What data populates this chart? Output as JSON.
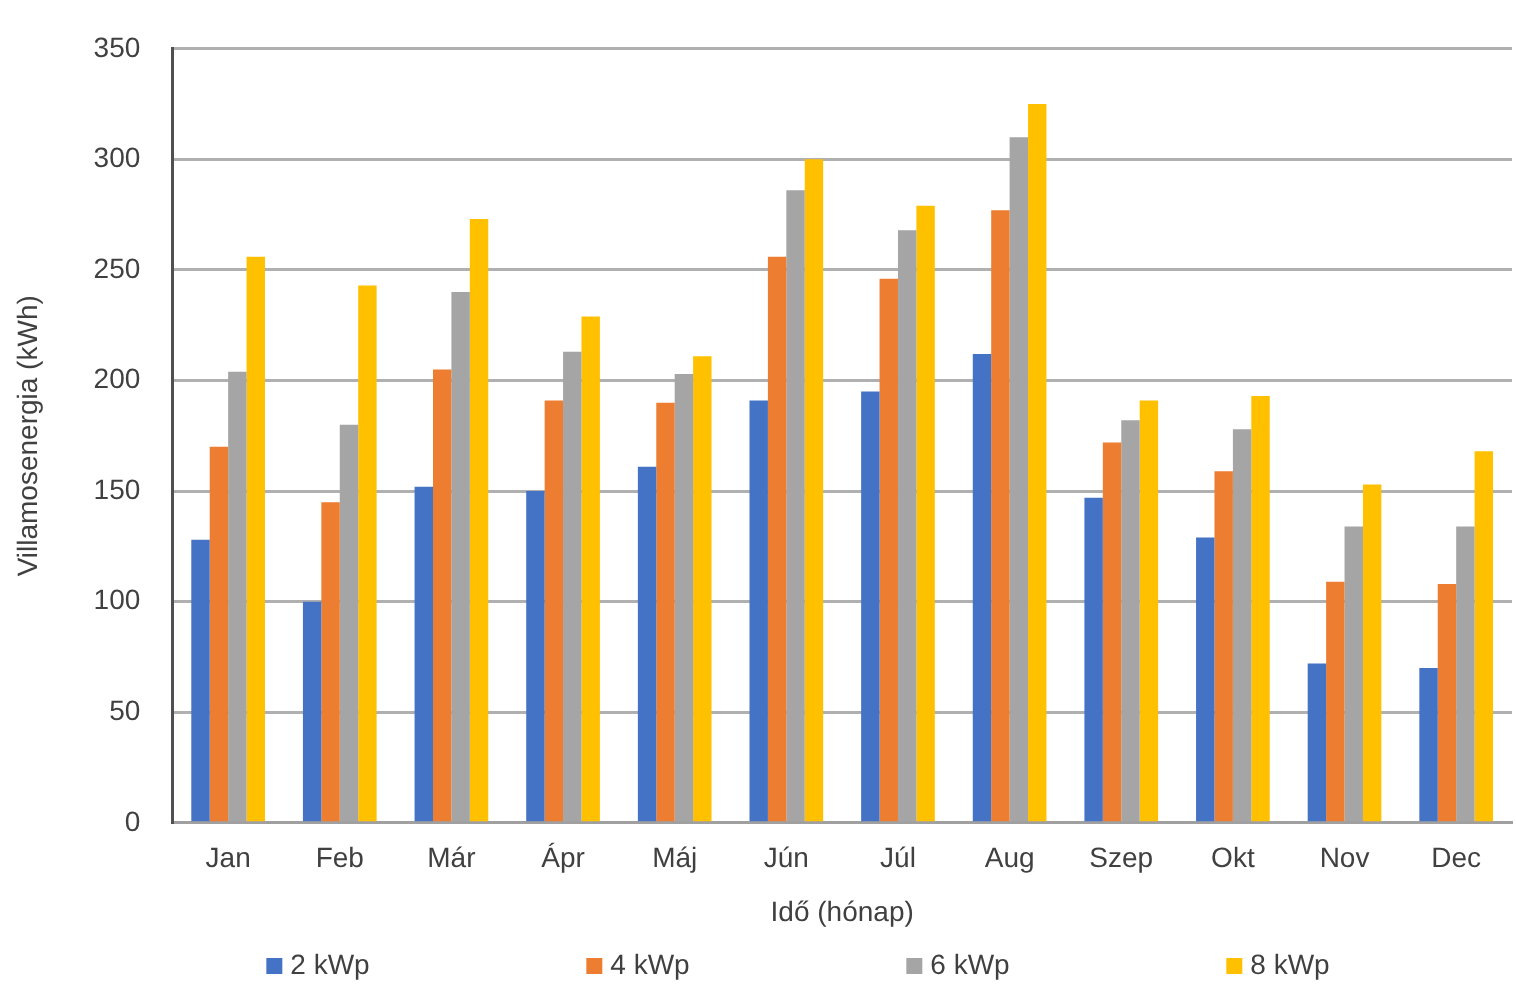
{
  "chart_data": {
    "type": "bar",
    "categories": [
      "Jan",
      "Feb",
      "Már",
      "Ápr",
      "Máj",
      "Jún",
      "Júl",
      "Aug",
      "Szep",
      "Okt",
      "Nov",
      "Dec"
    ],
    "series": [
      {
        "name": "2 kWp",
        "color": "#4472c4",
        "values": [
          128,
          100,
          152,
          150,
          161,
          191,
          195,
          212,
          147,
          129,
          72,
          70
        ]
      },
      {
        "name": "4 kWp",
        "color": "#ed7d31",
        "values": [
          170,
          145,
          205,
          191,
          190,
          256,
          246,
          277,
          172,
          159,
          109,
          108
        ]
      },
      {
        "name": "6 kWp",
        "color": "#a5a5a5",
        "values": [
          204,
          180,
          240,
          213,
          203,
          286,
          268,
          310,
          182,
          178,
          134,
          134
        ]
      },
      {
        "name": "8 kWp",
        "color": "#ffc000",
        "values": [
          256,
          243,
          273,
          229,
          211,
          300,
          279,
          325,
          191,
          193,
          153,
          168
        ]
      }
    ],
    "xlabel": "Idő (hónap)",
    "ylabel": "Villamosenergia (kWh)",
    "ylim": [
      0,
      350
    ],
    "yticks": [
      0,
      50,
      100,
      150,
      200,
      250,
      300,
      350
    ],
    "grid": "y",
    "legend": "bottom"
  }
}
